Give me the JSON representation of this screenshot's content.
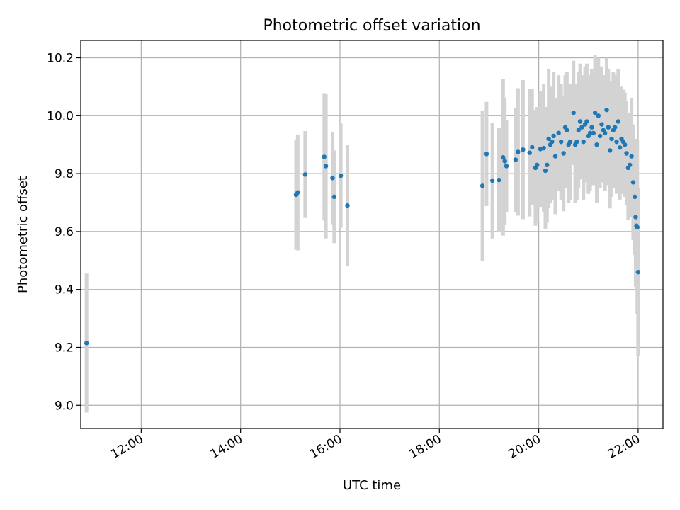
{
  "chart_data": {
    "type": "scatter",
    "title": "Photometric offset variation",
    "xlabel": "UTC time",
    "ylabel": "Photometric offset",
    "xlim": [
      "10:47",
      "22:30"
    ],
    "ylim": [
      8.92,
      10.26
    ],
    "x_ticks": [
      "12:00",
      "14:00",
      "16:00",
      "18:00",
      "20:00",
      "22:00"
    ],
    "y_ticks": [
      "9.0",
      "9.2",
      "9.4",
      "9.6",
      "9.8",
      "10.0",
      "10.2"
    ],
    "grid": true,
    "colors": {
      "points": "#1f77b4",
      "errorbars": "#d3d3d3",
      "grid": "#b0b0b0"
    },
    "x": [
      "10:54",
      "15:07",
      "15:09",
      "15:18",
      "15:41",
      "15:43",
      "15:51",
      "15:53",
      "16:01",
      "16:09",
      "18:52",
      "18:57",
      "19:04",
      "19:12",
      "19:17",
      "19:19",
      "19:21",
      "19:32",
      "19:35",
      "19:41",
      "19:49",
      "19:52",
      "19:56",
      "19:58",
      "20:02",
      "20:06",
      "20:08",
      "20:10",
      "20:12",
      "20:14",
      "20:16",
      "20:18",
      "20:20",
      "20:24",
      "20:27",
      "20:30",
      "20:32",
      "20:34",
      "20:36",
      "20:38",
      "20:42",
      "20:44",
      "20:46",
      "20:48",
      "20:50",
      "20:52",
      "20:54",
      "20:56",
      "20:58",
      "21:00",
      "21:02",
      "21:04",
      "21:06",
      "21:08",
      "21:10",
      "21:12",
      "21:14",
      "21:16",
      "21:18",
      "21:20",
      "21:22",
      "21:24",
      "21:26",
      "21:28",
      "21:30",
      "21:32",
      "21:34",
      "21:36",
      "21:38",
      "21:40",
      "21:42",
      "21:44",
      "21:46",
      "21:48",
      "21:50",
      "21:52",
      "21:54",
      "21:56",
      "21:57",
      "21:58",
      "21:59",
      "22:00"
    ],
    "y": [
      9.215,
      9.727,
      9.735,
      9.797,
      9.858,
      9.826,
      9.785,
      9.72,
      9.793,
      9.69,
      9.758,
      9.868,
      9.776,
      9.778,
      9.856,
      9.843,
      9.826,
      9.848,
      9.875,
      9.883,
      9.872,
      9.891,
      9.82,
      9.83,
      9.885,
      9.888,
      9.81,
      9.83,
      9.92,
      9.9,
      9.91,
      9.93,
      9.86,
      9.94,
      9.91,
      9.87,
      9.96,
      9.95,
      9.9,
      9.91,
      10.01,
      9.9,
      9.91,
      9.95,
      9.98,
      9.96,
      9.91,
      9.97,
      9.98,
      9.93,
      9.94,
      9.96,
      9.94,
      10.01,
      9.9,
      10.0,
      9.93,
      9.97,
      9.95,
      9.94,
      10.02,
      9.96,
      9.88,
      9.92,
      9.95,
      9.96,
      9.91,
      9.98,
      9.89,
      9.92,
      9.91,
      9.9,
      9.87,
      9.82,
      9.83,
      9.86,
      9.77,
      9.72,
      9.65,
      9.62,
      9.615,
      9.46
    ],
    "yerr": [
      0.24,
      0.19,
      0.2,
      0.15,
      0.22,
      0.25,
      0.16,
      0.16,
      0.18,
      0.21,
      0.26,
      0.18,
      0.2,
      0.18,
      0.27,
      0.22,
      0.16,
      0.18,
      0.22,
      0.24,
      0.22,
      0.2,
      0.2,
      0.2,
      0.2,
      0.22,
      0.2,
      0.2,
      0.24,
      0.2,
      0.18,
      0.22,
      0.2,
      0.2,
      0.2,
      0.2,
      0.18,
      0.2,
      0.2,
      0.2,
      0.18,
      0.2,
      0.2,
      0.2,
      0.2,
      0.18,
      0.2,
      0.2,
      0.2,
      0.2,
      0.2,
      0.2,
      0.18,
      0.2,
      0.2,
      0.2,
      0.18,
      0.2,
      0.18,
      0.2,
      0.18,
      0.2,
      0.2,
      0.2,
      0.2,
      0.18,
      0.18,
      0.18,
      0.18,
      0.18,
      0.18,
      0.18,
      0.18,
      0.18,
      0.18,
      0.2,
      0.2,
      0.2,
      0.24,
      0.22,
      0.3,
      0.29
    ]
  }
}
